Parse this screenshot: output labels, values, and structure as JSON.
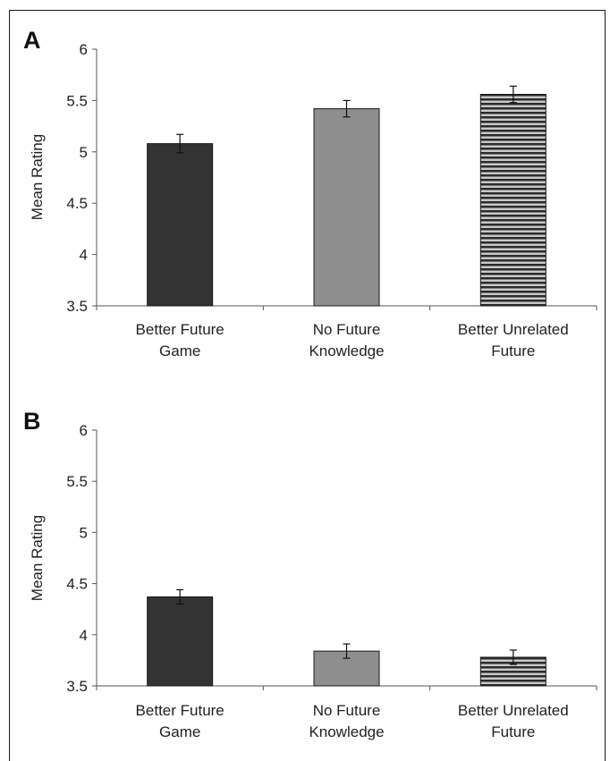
{
  "chart_data": [
    {
      "panel_label": "A",
      "type": "bar",
      "ylabel": "Mean Rating",
      "ylim": [
        3.5,
        6
      ],
      "yticks": [
        "6",
        "5.5",
        "5",
        "4.5",
        "4",
        "3.5"
      ],
      "categories": [
        [
          "Better Future",
          "Game"
        ],
        [
          "No Future",
          "Knowledge"
        ],
        [
          "Better Unrelated",
          "Future"
        ]
      ],
      "values": [
        5.08,
        5.42,
        5.56
      ],
      "errors": [
        0.09,
        0.08,
        0.08
      ],
      "bar_styles": [
        "dark",
        "gray",
        "striped"
      ],
      "grid": false
    },
    {
      "panel_label": "B",
      "type": "bar",
      "ylabel": "Mean Rating",
      "ylim": [
        3.5,
        6
      ],
      "yticks": [
        "6",
        "5.5",
        "5",
        "4.5",
        "4",
        "3.5"
      ],
      "categories": [
        [
          "Better Future",
          "Game"
        ],
        [
          "No Future",
          "Knowledge"
        ],
        [
          "Better Unrelated",
          "Future"
        ]
      ],
      "values": [
        4.37,
        3.84,
        3.78
      ],
      "errors": [
        0.07,
        0.07,
        0.07
      ],
      "bar_styles": [
        "dark",
        "gray",
        "striped"
      ],
      "grid": false
    }
  ],
  "colors": {
    "dark": "#333333",
    "gray": "#8e8e8e",
    "stripe_dark": "#2b2b2b",
    "stripe_light": "#c8c8c8",
    "bar_outline": "#1a1a1a",
    "axis": "#555555"
  }
}
